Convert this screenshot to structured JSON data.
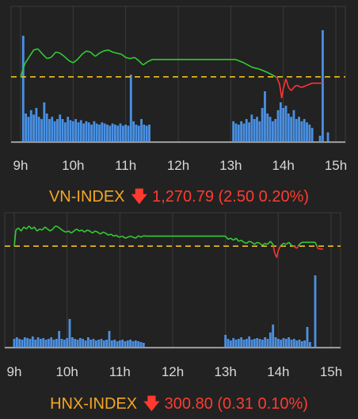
{
  "chart_data": [
    {
      "type": "line",
      "index_name": "VN-INDEX",
      "arrow": "🡇",
      "value": "1,270.79",
      "change": "(2.50 0.20%)",
      "x_ticks": [
        "9h",
        "10h",
        "11h",
        "12h",
        "13h",
        "14h",
        "15h"
      ],
      "reference_level": 1273.29,
      "ylim": [
        1267.5,
        1277.5
      ],
      "line_colors": {
        "above": "#33cc33",
        "below": "#ff3333",
        "reference": "#f0c020",
        "volume": "#4a90e2"
      },
      "price": [
        [
          9.0,
          1273.3
        ],
        [
          9.08,
          1274.5
        ],
        [
          9.17,
          1275.2
        ],
        [
          9.25,
          1275.8
        ],
        [
          9.33,
          1275.9
        ],
        [
          9.42,
          1275.4
        ],
        [
          9.5,
          1275.0
        ],
        [
          9.58,
          1275.1
        ],
        [
          9.67,
          1275.6
        ],
        [
          9.75,
          1275.5
        ],
        [
          9.83,
          1275.2
        ],
        [
          9.92,
          1274.8
        ],
        [
          10.0,
          1274.6
        ],
        [
          10.08,
          1274.9
        ],
        [
          10.17,
          1275.4
        ],
        [
          10.25,
          1275.7
        ],
        [
          10.33,
          1275.6
        ],
        [
          10.42,
          1275.2
        ],
        [
          10.5,
          1275.5
        ],
        [
          10.58,
          1275.7
        ],
        [
          10.67,
          1275.8
        ],
        [
          10.75,
          1275.6
        ],
        [
          10.83,
          1275.5
        ],
        [
          10.92,
          1275.4
        ],
        [
          11.0,
          1275.1
        ],
        [
          11.08,
          1275.0
        ],
        [
          11.17,
          1275.1
        ],
        [
          11.25,
          1274.8
        ],
        [
          11.33,
          1274.4
        ],
        [
          11.42,
          1274.7
        ],
        [
          11.5,
          1274.9
        ],
        [
          13.0,
          1274.9
        ],
        [
          13.1,
          1274.9
        ],
        [
          13.25,
          1274.6
        ],
        [
          13.4,
          1274.2
        ],
        [
          13.55,
          1274.0
        ],
        [
          13.7,
          1273.7
        ],
        [
          13.82,
          1273.4
        ],
        [
          13.88,
          1273.2
        ],
        [
          13.93,
          1272.6
        ],
        [
          13.97,
          1271.3
        ],
        [
          14.0,
          1272.2
        ],
        [
          14.05,
          1273.1
        ],
        [
          14.1,
          1272.3
        ],
        [
          14.15,
          1272.0
        ],
        [
          14.2,
          1272.3
        ],
        [
          14.25,
          1272.5
        ],
        [
          14.35,
          1272.3
        ],
        [
          14.45,
          1272.5
        ],
        [
          14.55,
          1272.7
        ],
        [
          14.75,
          1272.7
        ]
      ],
      "volume": [
        [
          9.05,
          0.95
        ],
        [
          9.1,
          0.25
        ],
        [
          9.15,
          0.22
        ],
        [
          9.2,
          0.28
        ],
        [
          9.25,
          0.24
        ],
        [
          9.3,
          0.3
        ],
        [
          9.35,
          0.22
        ],
        [
          9.4,
          0.2
        ],
        [
          9.45,
          0.35
        ],
        [
          9.5,
          0.25
        ],
        [
          9.55,
          0.2
        ],
        [
          9.6,
          0.22
        ],
        [
          9.65,
          0.18
        ],
        [
          9.7,
          0.2
        ],
        [
          9.75,
          0.24
        ],
        [
          9.8,
          0.2
        ],
        [
          9.85,
          0.17
        ],
        [
          9.9,
          0.22
        ],
        [
          9.95,
          0.19
        ],
        [
          10.0,
          0.18
        ],
        [
          10.05,
          0.2
        ],
        [
          10.1,
          0.17
        ],
        [
          10.15,
          0.19
        ],
        [
          10.2,
          0.16
        ],
        [
          10.25,
          0.18
        ],
        [
          10.3,
          0.17
        ],
        [
          10.35,
          0.15
        ],
        [
          10.4,
          0.18
        ],
        [
          10.45,
          0.16
        ],
        [
          10.5,
          0.15
        ],
        [
          10.55,
          0.17
        ],
        [
          10.6,
          0.16
        ],
        [
          10.65,
          0.15
        ],
        [
          10.7,
          0.14
        ],
        [
          10.75,
          0.16
        ],
        [
          10.8,
          0.15
        ],
        [
          10.85,
          0.14
        ],
        [
          10.9,
          0.16
        ],
        [
          10.95,
          0.14
        ],
        [
          11.0,
          0.15
        ],
        [
          11.05,
          0.14
        ],
        [
          11.1,
          0.6
        ],
        [
          11.15,
          0.18
        ],
        [
          11.2,
          0.15
        ],
        [
          11.25,
          0.14
        ],
        [
          11.3,
          0.2
        ],
        [
          11.35,
          0.15
        ],
        [
          11.4,
          0.14
        ],
        [
          11.45,
          0.15
        ],
        [
          13.05,
          0.18
        ],
        [
          13.1,
          0.16
        ],
        [
          13.15,
          0.15
        ],
        [
          13.2,
          0.18
        ],
        [
          13.25,
          0.16
        ],
        [
          13.3,
          0.2
        ],
        [
          13.35,
          0.17
        ],
        [
          13.4,
          0.24
        ],
        [
          13.45,
          0.2
        ],
        [
          13.5,
          0.22
        ],
        [
          13.55,
          0.18
        ],
        [
          13.6,
          0.3
        ],
        [
          13.65,
          0.45
        ],
        [
          13.7,
          0.25
        ],
        [
          13.75,
          0.22
        ],
        [
          13.8,
          0.18
        ],
        [
          13.85,
          0.2
        ],
        [
          13.9,
          0.28
        ],
        [
          13.95,
          0.35
        ],
        [
          14.0,
          0.3
        ],
        [
          14.05,
          0.32
        ],
        [
          14.1,
          0.25
        ],
        [
          14.15,
          0.22
        ],
        [
          14.2,
          0.28
        ],
        [
          14.25,
          0.2
        ],
        [
          14.3,
          0.22
        ],
        [
          14.35,
          0.18
        ],
        [
          14.4,
          0.2
        ],
        [
          14.45,
          0.17
        ],
        [
          14.5,
          0.15
        ],
        [
          14.55,
          0.12
        ],
        [
          14.7,
          0.05
        ],
        [
          14.75,
          1.0
        ],
        [
          14.85,
          0.08
        ]
      ]
    },
    {
      "type": "line",
      "index_name": "HNX-INDEX",
      "arrow": "🡇",
      "value": "300.80",
      "change": "(0.31 0.10%)",
      "x_ticks": [
        "9h",
        "10h",
        "11h",
        "12h",
        "13h",
        "14h",
        "15h"
      ],
      "reference_level": 301.11,
      "ylim": [
        299.1,
        302.4
      ],
      "line_colors": {
        "above": "#33cc33",
        "below": "#ff3333",
        "reference": "#f0c020",
        "volume": "#4a90e2"
      },
      "price": [
        [
          9.0,
          301.1
        ],
        [
          9.03,
          301.9
        ],
        [
          9.08,
          302.0
        ],
        [
          9.13,
          301.85
        ],
        [
          9.18,
          302.05
        ],
        [
          9.23,
          301.95
        ],
        [
          9.28,
          302.1
        ],
        [
          9.33,
          301.95
        ],
        [
          9.38,
          302.05
        ],
        [
          9.43,
          301.85
        ],
        [
          9.48,
          301.95
        ],
        [
          9.53,
          301.9
        ],
        [
          9.58,
          302.05
        ],
        [
          9.63,
          301.95
        ],
        [
          9.68,
          301.85
        ],
        [
          9.73,
          301.95
        ],
        [
          9.78,
          302.1
        ],
        [
          9.83,
          302.05
        ],
        [
          9.88,
          301.95
        ],
        [
          9.93,
          301.85
        ],
        [
          9.98,
          301.8
        ],
        [
          10.03,
          301.85
        ],
        [
          10.08,
          301.75
        ],
        [
          10.13,
          301.85
        ],
        [
          10.18,
          301.95
        ],
        [
          10.23,
          301.85
        ],
        [
          10.28,
          301.9
        ],
        [
          10.33,
          301.8
        ],
        [
          10.38,
          301.9
        ],
        [
          10.43,
          301.85
        ],
        [
          10.48,
          301.75
        ],
        [
          10.53,
          301.85
        ],
        [
          10.58,
          301.8
        ],
        [
          10.63,
          301.7
        ],
        [
          10.68,
          301.8
        ],
        [
          10.73,
          301.75
        ],
        [
          10.78,
          301.65
        ],
        [
          10.83,
          301.7
        ],
        [
          10.88,
          301.6
        ],
        [
          10.93,
          301.65
        ],
        [
          10.98,
          301.55
        ],
        [
          11.05,
          301.6
        ],
        [
          11.1,
          301.5
        ],
        [
          11.15,
          301.55
        ],
        [
          11.2,
          301.6
        ],
        [
          11.25,
          301.55
        ],
        [
          11.3,
          301.5
        ],
        [
          11.35,
          301.62
        ],
        [
          11.4,
          301.55
        ],
        [
          11.45,
          301.62
        ],
        [
          11.5,
          301.6
        ],
        [
          13.0,
          301.6
        ],
        [
          13.05,
          301.45
        ],
        [
          13.1,
          301.5
        ],
        [
          13.15,
          301.4
        ],
        [
          13.2,
          301.5
        ],
        [
          13.25,
          301.35
        ],
        [
          13.3,
          301.4
        ],
        [
          13.35,
          301.3
        ],
        [
          13.4,
          301.25
        ],
        [
          13.45,
          301.35
        ],
        [
          13.5,
          301.3
        ],
        [
          13.55,
          301.2
        ],
        [
          13.6,
          301.3
        ],
        [
          13.65,
          301.25
        ],
        [
          13.7,
          301.15
        ],
        [
          13.75,
          301.25
        ],
        [
          13.8,
          301.2
        ],
        [
          13.85,
          301.35
        ],
        [
          13.9,
          301.2
        ],
        [
          13.93,
          300.8
        ],
        [
          13.97,
          300.55
        ],
        [
          14.0,
          300.9
        ],
        [
          14.05,
          301.15
        ],
        [
          14.1,
          301.25
        ],
        [
          14.15,
          301.2
        ],
        [
          14.2,
          301.3
        ],
        [
          14.25,
          301.15
        ],
        [
          14.3,
          301.1
        ],
        [
          14.35,
          301.0
        ],
        [
          14.4,
          301.2
        ],
        [
          14.45,
          301.3
        ],
        [
          14.5,
          301.3
        ],
        [
          14.6,
          301.3
        ],
        [
          14.7,
          301.3
        ],
        [
          14.75,
          301.0
        ],
        [
          14.8,
          300.97
        ],
        [
          14.85,
          300.97
        ]
      ],
      "volume": [
        [
          9.0,
          0.1
        ],
        [
          9.05,
          0.12
        ],
        [
          9.1,
          0.1
        ],
        [
          9.15,
          0.09
        ],
        [
          9.2,
          0.12
        ],
        [
          9.25,
          0.11
        ],
        [
          9.3,
          0.1
        ],
        [
          9.35,
          0.13
        ],
        [
          9.4,
          0.09
        ],
        [
          9.45,
          0.12
        ],
        [
          9.5,
          0.1
        ],
        [
          9.55,
          0.11
        ],
        [
          9.6,
          0.09
        ],
        [
          9.65,
          0.1
        ],
        [
          9.7,
          0.12
        ],
        [
          9.75,
          0.09
        ],
        [
          9.8,
          0.1
        ],
        [
          9.85,
          0.2
        ],
        [
          9.9,
          0.1
        ],
        [
          9.95,
          0.09
        ],
        [
          10.0,
          0.11
        ],
        [
          10.05,
          0.35
        ],
        [
          10.1,
          0.12
        ],
        [
          10.15,
          0.1
        ],
        [
          10.2,
          0.09
        ],
        [
          10.25,
          0.11
        ],
        [
          10.3,
          0.1
        ],
        [
          10.35,
          0.08
        ],
        [
          10.4,
          0.12
        ],
        [
          10.45,
          0.09
        ],
        [
          10.5,
          0.1
        ],
        [
          10.55,
          0.08
        ],
        [
          10.6,
          0.09
        ],
        [
          10.65,
          0.1
        ],
        [
          10.7,
          0.08
        ],
        [
          10.75,
          0.09
        ],
        [
          10.8,
          0.2
        ],
        [
          10.85,
          0.08
        ],
        [
          10.9,
          0.09
        ],
        [
          10.95,
          0.07
        ],
        [
          11.0,
          0.08
        ],
        [
          11.05,
          0.09
        ],
        [
          11.1,
          0.07
        ],
        [
          11.15,
          0.08
        ],
        [
          11.2,
          0.09
        ],
        [
          11.25,
          0.07
        ],
        [
          11.3,
          0.08
        ],
        [
          11.35,
          0.07
        ],
        [
          11.4,
          0.06
        ],
        [
          11.45,
          0.05
        ],
        [
          13.0,
          0.15
        ],
        [
          13.05,
          0.1
        ],
        [
          13.1,
          0.08
        ],
        [
          13.15,
          0.11
        ],
        [
          13.2,
          0.09
        ],
        [
          13.25,
          0.1
        ],
        [
          13.3,
          0.12
        ],
        [
          13.35,
          0.09
        ],
        [
          13.4,
          0.1
        ],
        [
          13.45,
          0.13
        ],
        [
          13.5,
          0.09
        ],
        [
          13.55,
          0.1
        ],
        [
          13.6,
          0.11
        ],
        [
          13.65,
          0.1
        ],
        [
          13.7,
          0.09
        ],
        [
          13.75,
          0.12
        ],
        [
          13.8,
          0.1
        ],
        [
          13.85,
          0.18
        ],
        [
          13.9,
          0.28
        ],
        [
          13.95,
          0.12
        ],
        [
          14.0,
          0.1
        ],
        [
          14.05,
          0.09
        ],
        [
          14.1,
          0.11
        ],
        [
          14.15,
          0.1
        ],
        [
          14.2,
          0.12
        ],
        [
          14.25,
          0.09
        ],
        [
          14.3,
          0.1
        ],
        [
          14.35,
          0.08
        ],
        [
          14.4,
          0.09
        ],
        [
          14.45,
          0.07
        ],
        [
          14.5,
          0.08
        ],
        [
          14.55,
          0.25
        ],
        [
          14.6,
          0.06
        ],
        [
          14.7,
          0.9
        ]
      ]
    }
  ]
}
